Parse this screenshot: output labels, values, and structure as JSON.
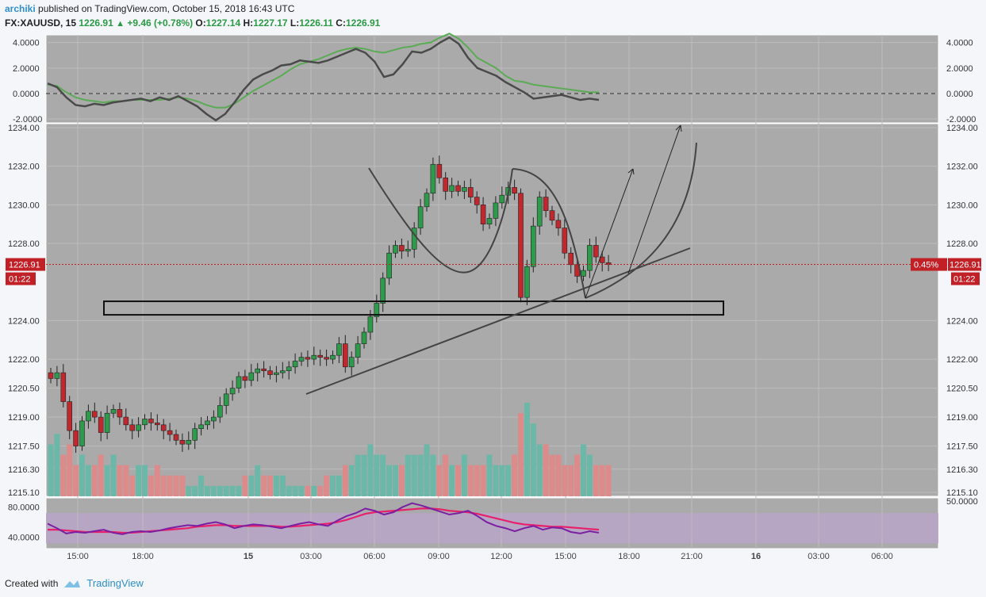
{
  "header": {
    "author": "archiki",
    "published_text": "published on TradingView.com, October 15, 2018 16:43 UTC",
    "symbol": "FX:XAUUSD, 15",
    "last": "1226.91",
    "change": "+9.46 (+0.78%)",
    "o_label": "O:",
    "o": "1227.14",
    "h_label": "H:",
    "h": "1227.17",
    "l_label": "L:",
    "l": "1226.11",
    "c_label": "C:",
    "c": "1226.91"
  },
  "footer": {
    "created_with": "Created with",
    "brand": "TradingView"
  },
  "colors": {
    "up": "#2e9a4b",
    "down": "#c0282e",
    "panel_bg": "#aaaaaa",
    "vol_up": "#6bb7a8",
    "vol_down": "#dc8a8a",
    "macd": "#4a4a4a",
    "signal": "#5bab54",
    "signal_neg": "#a05050",
    "rsi_band": "#b7a5c6",
    "price_tag": "#c22027"
  },
  "chart_data": {
    "type": "candlestick",
    "symbol": "FX:XAUUSD",
    "interval": "15",
    "price_axis_ticks": [
      "1234.00",
      "1232.00",
      "1230.00",
      "1228.00",
      "1224.00",
      "1222.00",
      "1220.50",
      "1219.00",
      "1217.50",
      "1216.30",
      "1215.10"
    ],
    "price_ylim": [
      1215.1,
      1234.0
    ],
    "last_price_label": "1226.91",
    "countdown_label": "01:22",
    "pct_label": "0.45%",
    "time_ticks": [
      "15:00",
      "18:00",
      "15",
      "03:00",
      "06:00",
      "09:00",
      "12:00",
      "15:00",
      "18:00",
      "21:00",
      "16",
      "03:00",
      "06:00"
    ],
    "macd_ticks": [
      "4.0000",
      "2.0000",
      "0.0000",
      "-2.0000"
    ],
    "macd_ylim": [
      -2.3,
      4.6
    ],
    "rsi_ticks": [
      "80.0000",
      "40.0000"
    ],
    "rsi_right_tick": "50.0000",
    "rsi_ylim": [
      25,
      92
    ],
    "close_path": [
      [
        0,
        1221.0
      ],
      [
        1,
        1221.3
      ],
      [
        2,
        1219.8
      ],
      [
        3,
        1218.3
      ],
      [
        4,
        1217.5
      ],
      [
        5,
        1218.8
      ],
      [
        6,
        1219.3
      ],
      [
        7,
        1219.0
      ],
      [
        8,
        1218.2
      ],
      [
        9,
        1219.2
      ],
      [
        10,
        1219.4
      ],
      [
        11,
        1219.0
      ],
      [
        12,
        1218.6
      ],
      [
        13,
        1218.3
      ],
      [
        14,
        1218.6
      ],
      [
        15,
        1218.9
      ],
      [
        16,
        1218.7
      ],
      [
        17,
        1218.6
      ],
      [
        18,
        1218.3
      ],
      [
        19,
        1218.1
      ],
      [
        20,
        1217.8
      ],
      [
        21,
        1217.6
      ],
      [
        22,
        1217.8
      ],
      [
        23,
        1218.4
      ],
      [
        24,
        1218.6
      ],
      [
        25,
        1218.8
      ],
      [
        26,
        1219.0
      ],
      [
        27,
        1219.6
      ],
      [
        28,
        1220.2
      ],
      [
        29,
        1220.5
      ],
      [
        30,
        1221.1
      ],
      [
        31,
        1220.9
      ],
      [
        32,
        1221.3
      ],
      [
        33,
        1221.5
      ],
      [
        34,
        1221.4
      ],
      [
        35,
        1221.2
      ],
      [
        36,
        1221.3
      ],
      [
        37,
        1221.4
      ],
      [
        38,
        1221.6
      ],
      [
        39,
        1221.9
      ],
      [
        40,
        1222.1
      ],
      [
        41,
        1222.0
      ],
      [
        42,
        1222.2
      ],
      [
        43,
        1222.1
      ],
      [
        44,
        1222.0
      ],
      [
        45,
        1222.2
      ],
      [
        46,
        1222.8
      ],
      [
        47,
        1221.6
      ],
      [
        48,
        1222.1
      ],
      [
        49,
        1222.8
      ],
      [
        50,
        1223.4
      ],
      [
        51,
        1224.2
      ],
      [
        52,
        1224.9
      ],
      [
        53,
        1226.2
      ],
      [
        54,
        1227.5
      ],
      [
        55,
        1227.9
      ],
      [
        56,
        1227.6
      ],
      [
        57,
        1227.7
      ],
      [
        58,
        1228.8
      ],
      [
        59,
        1229.9
      ],
      [
        60,
        1230.6
      ],
      [
        61,
        1232.1
      ],
      [
        62,
        1231.4
      ],
      [
        63,
        1230.7
      ],
      [
        64,
        1231.0
      ],
      [
        65,
        1230.7
      ],
      [
        66,
        1230.9
      ],
      [
        67,
        1230.4
      ],
      [
        68,
        1230.0
      ],
      [
        69,
        1229.0
      ],
      [
        70,
        1229.3
      ],
      [
        71,
        1230.1
      ],
      [
        72,
        1230.5
      ],
      [
        73,
        1230.9
      ],
      [
        74,
        1230.6
      ],
      [
        75,
        1225.2
      ],
      [
        76,
        1226.8
      ],
      [
        77,
        1228.9
      ],
      [
        78,
        1230.4
      ],
      [
        79,
        1229.7
      ],
      [
        80,
        1229.2
      ],
      [
        81,
        1228.8
      ],
      [
        82,
        1227.5
      ],
      [
        83,
        1226.9
      ],
      [
        84,
        1226.3
      ],
      [
        85,
        1226.6
      ],
      [
        86,
        1227.9
      ],
      [
        87,
        1227.3
      ],
      [
        88,
        1227.0
      ],
      [
        89,
        1226.91
      ]
    ],
    "volume_relative": [
      5,
      6,
      4,
      5,
      3,
      4,
      3,
      3,
      4,
      3,
      4,
      3,
      3,
      2,
      3,
      3,
      2,
      3,
      2,
      2,
      2,
      2,
      1,
      1,
      2,
      1,
      1,
      1,
      1,
      1,
      1,
      2,
      2,
      3,
      2,
      2,
      2,
      2,
      1,
      1,
      1,
      1,
      1,
      1,
      2,
      2,
      2,
      3,
      3,
      4,
      4,
      5,
      4,
      4,
      3,
      3,
      3,
      4,
      4,
      4,
      5,
      4,
      3,
      4,
      3,
      3,
      4,
      3,
      3,
      3,
      4,
      3,
      3,
      3,
      4,
      8,
      9,
      7,
      5,
      5,
      4,
      4,
      3,
      3,
      4,
      5,
      4,
      3,
      3,
      3
    ],
    "macd": [
      0.8,
      0.5,
      -0.3,
      -0.9,
      -1.0,
      -0.8,
      -0.9,
      -0.7,
      -0.6,
      -0.5,
      -0.4,
      -0.6,
      -0.3,
      -0.5,
      -0.2,
      -0.6,
      -1.0,
      -1.6,
      -2.1,
      -1.6,
      -0.7,
      0.3,
      1.1,
      1.5,
      1.8,
      2.2,
      2.3,
      2.6,
      2.5,
      2.4,
      2.6,
      2.9,
      3.2,
      3.5,
      3.2,
      2.5,
      1.3,
      1.5,
      2.3,
      3.3,
      3.2,
      3.5,
      4.0,
      4.4,
      3.9,
      2.8,
      2.0,
      1.7,
      1.4,
      0.9,
      0.5,
      0.1,
      -0.4,
      -0.3,
      -0.2,
      -0.1,
      -0.3,
      -0.5,
      -0.4,
      -0.5
    ],
    "signal": [
      0.7,
      0.6,
      0.1,
      -0.3,
      -0.5,
      -0.6,
      -0.7,
      -0.6,
      -0.6,
      -0.5,
      -0.5,
      -0.5,
      -0.5,
      -0.4,
      -0.3,
      -0.4,
      -0.6,
      -0.9,
      -1.1,
      -1.1,
      -0.8,
      -0.3,
      0.2,
      0.6,
      1.0,
      1.4,
      1.9,
      2.3,
      2.5,
      2.7,
      3.0,
      3.3,
      3.5,
      3.6,
      3.5,
      3.3,
      3.2,
      3.4,
      3.6,
      3.7,
      3.9,
      4.0,
      4.4,
      4.7,
      4.3,
      3.6,
      2.8,
      2.4,
      2.0,
      1.4,
      1.0,
      0.9,
      0.7,
      0.6,
      0.5,
      0.4,
      0.3,
      0.2,
      0.1,
      0.1
    ],
    "rsi": [
      58,
      52,
      45,
      47,
      46,
      48,
      50,
      46,
      44,
      47,
      48,
      47,
      49,
      52,
      54,
      56,
      55,
      58,
      60,
      57,
      52,
      55,
      57,
      56,
      54,
      52,
      55,
      58,
      60,
      57,
      55,
      62,
      68,
      72,
      78,
      75,
      70,
      73,
      80,
      85,
      82,
      78,
      74,
      70,
      72,
      75,
      68,
      60,
      55,
      52,
      48,
      52,
      55,
      50,
      53,
      52,
      47,
      45,
      48,
      46
    ],
    "rsi_ma": [
      50,
      50,
      49,
      48,
      47,
      47,
      47,
      47,
      46,
      46,
      47,
      48,
      49,
      50,
      51,
      52,
      54,
      55,
      56,
      56,
      55,
      55,
      55,
      55,
      55,
      54,
      54,
      55,
      56,
      57,
      58,
      60,
      63,
      67,
      71,
      73,
      74,
      75,
      76,
      77,
      78,
      78,
      77,
      75,
      74,
      73,
      71,
      68,
      65,
      62,
      59,
      57,
      56,
      55,
      54,
      54,
      53,
      52,
      51,
      50
    ]
  },
  "annotations": {
    "support_zone": [
      1224.3,
      1225.0
    ],
    "trendline": "rising",
    "pattern": "cup-and-handle",
    "projections": 3
  }
}
